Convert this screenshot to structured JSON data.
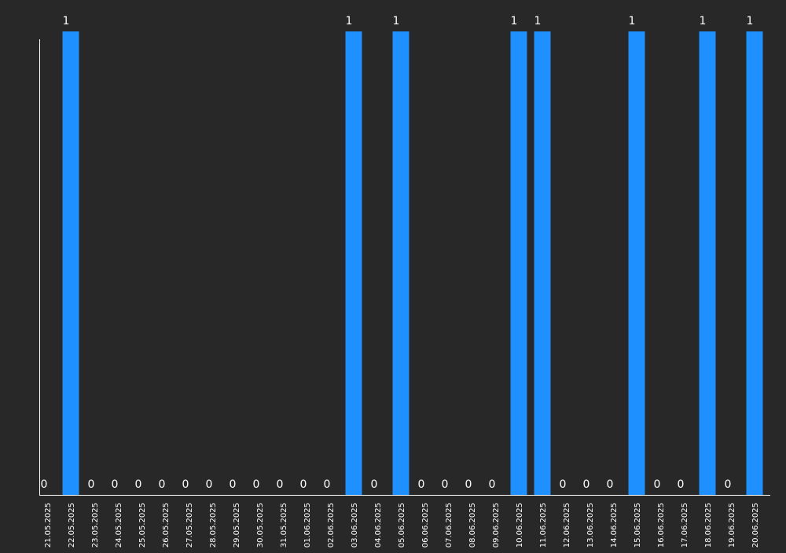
{
  "chart_data": {
    "type": "bar",
    "title": "",
    "xlabel": "",
    "ylabel": "",
    "ylim": [
      0,
      1
    ],
    "grid": false,
    "legend": "none",
    "show_data_labels": true,
    "colors": {
      "background": "#282828",
      "bar": "#1e90ff",
      "text": "#ffffff",
      "axis": "#ffffff"
    },
    "categories": [
      "21.05.2025",
      "22.05.2025",
      "23.05.2025",
      "24.05.2025",
      "25.05.2025",
      "26.05.2025",
      "27.05.2025",
      "28.05.2025",
      "29.05.2025",
      "30.05.2025",
      "31.05.2025",
      "01.06.2025",
      "02.06.2025",
      "03.06.2025",
      "04.06.2025",
      "05.06.2025",
      "06.06.2025",
      "07.06.2025",
      "08.06.2025",
      "09.06.2025",
      "10.06.2025",
      "11.06.2025",
      "12.06.2025",
      "13.06.2025",
      "14.06.2025",
      "15.06.2025",
      "16.06.2025",
      "17.06.2025",
      "18.06.2025",
      "19.06.2025",
      "20.06.2025"
    ],
    "values": [
      0,
      1,
      0,
      0,
      0,
      0,
      0,
      0,
      0,
      0,
      0,
      0,
      0,
      1,
      0,
      1,
      0,
      0,
      0,
      0,
      1,
      1,
      0,
      0,
      0,
      1,
      0,
      0,
      1,
      0,
      1
    ]
  }
}
